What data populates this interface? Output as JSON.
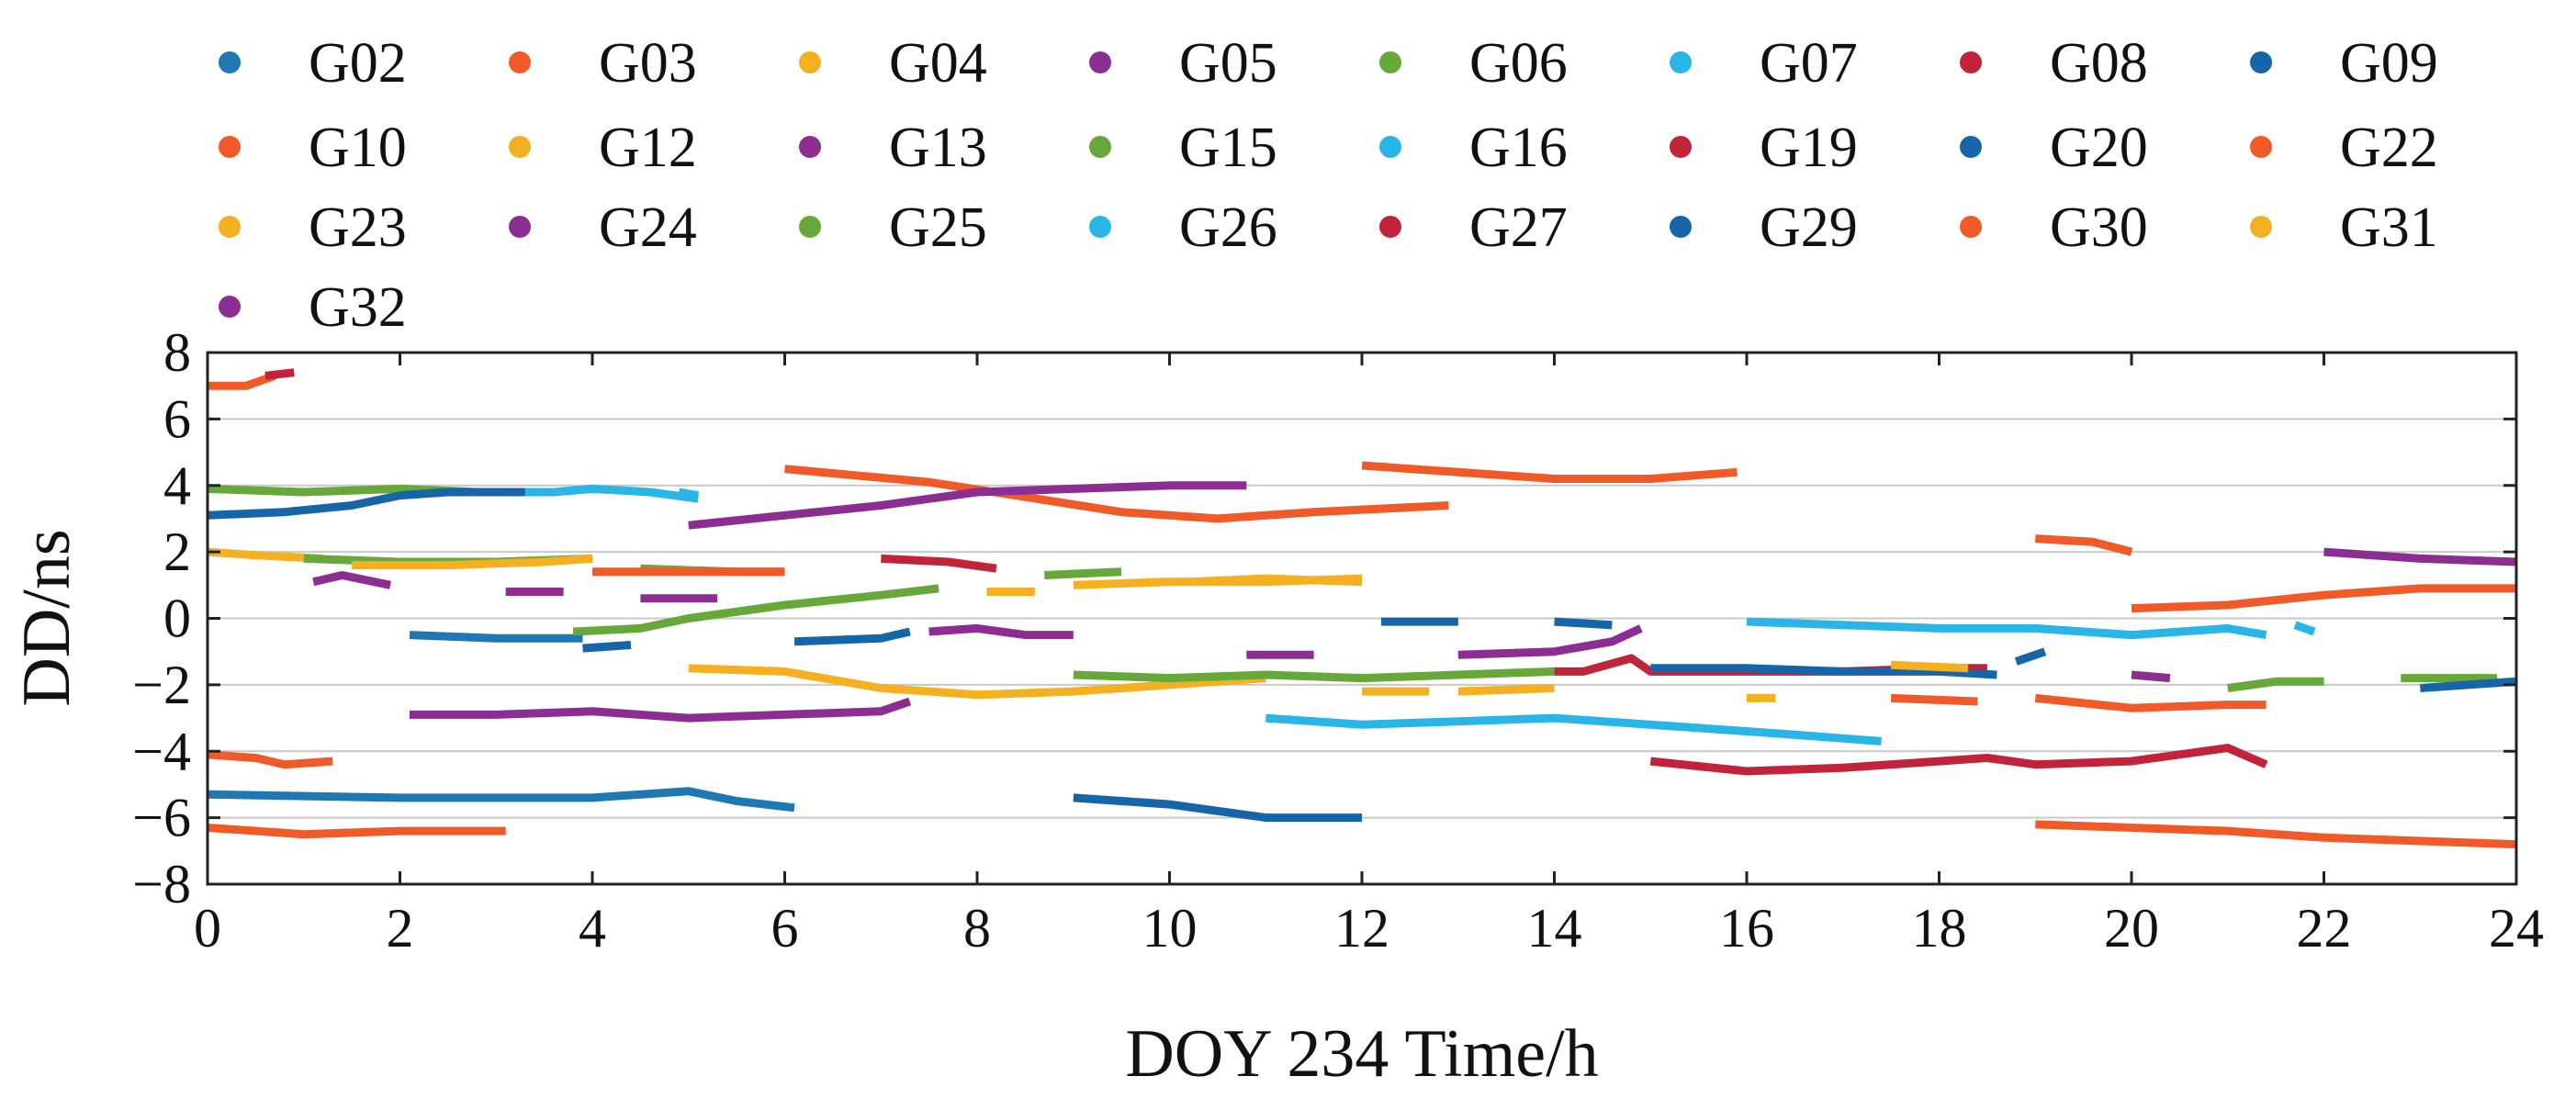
{
  "chart_data": {
    "type": "line",
    "title": "",
    "xlabel": "DOY 234 Time/h",
    "ylabel": "DD/ns",
    "xlim": [
      0,
      24
    ],
    "ylim": [
      -8,
      8
    ],
    "xticks": [
      0,
      2,
      4,
      6,
      8,
      10,
      12,
      14,
      16,
      18,
      20,
      22,
      24
    ],
    "yticks": [
      8,
      6,
      4,
      2,
      0,
      -2,
      -4,
      -6,
      -8
    ],
    "ytick_labels": [
      "8",
      "6",
      "4",
      "2",
      "0",
      "−2",
      "−4",
      "−6",
      "−8"
    ],
    "grid": "horizontal",
    "legend_position": "top",
    "colors": {
      "blue": "#1f77b4",
      "orange": "#f05a28",
      "yellow": "#f5b021",
      "purple": "#8c2d91",
      "green": "#66a83a",
      "cyan": "#29b6e6",
      "red": "#c0233a",
      "darkblue": "#1565a8"
    },
    "series": [
      {
        "name": "G02",
        "color": "#1f77b4",
        "segments": [
          [
            [
              0,
              -5.3
            ],
            [
              2,
              -5.4
            ],
            [
              3,
              -5.4
            ],
            [
              4,
              -5.4
            ],
            [
              5,
              -5.2
            ],
            [
              5.5,
              -5.5
            ],
            [
              6.1,
              -5.7
            ]
          ],
          [
            [
              2.1,
              -0.5
            ],
            [
              3,
              -0.6
            ],
            [
              3.9,
              -0.6
            ]
          ]
        ]
      },
      {
        "name": "G03",
        "color": "#f05a28",
        "segments": [
          [
            [
              0,
              7.0
            ],
            [
              0.4,
              7.0
            ],
            [
              0.7,
              7.3
            ]
          ],
          [
            [
              6,
              4.5
            ],
            [
              7.5,
              4.1
            ],
            [
              8.4,
              3.7
            ],
            [
              9.5,
              3.2
            ],
            [
              10.5,
              3.0
            ],
            [
              11.5,
              3.2
            ],
            [
              12.9,
              3.4
            ]
          ]
        ]
      },
      {
        "name": "G04",
        "color": "#f5b021",
        "segments": [
          [
            [
              0,
              2.0
            ],
            [
              0.5,
              1.9
            ],
            [
              1.2,
              1.8
            ]
          ],
          [
            [
              8.1,
              0.8
            ],
            [
              8.6,
              0.8
            ]
          ],
          [
            [
              9,
              1.0
            ],
            [
              10,
              1.1
            ],
            [
              11,
              1.1
            ],
            [
              12,
              1.2
            ]
          ]
        ]
      },
      {
        "name": "G05",
        "color": "#8c2d91",
        "segments": [
          [
            [
              1.1,
              1.1
            ],
            [
              1.4,
              1.3
            ],
            [
              1.9,
              1.0
            ]
          ],
          [
            [
              3.1,
              0.8
            ],
            [
              3.7,
              0.8
            ]
          ],
          [
            [
              4.5,
              0.6
            ],
            [
              5.3,
              0.6
            ]
          ]
        ]
      },
      {
        "name": "G06",
        "color": "#66a83a",
        "segments": [
          [
            [
              0,
              3.9
            ],
            [
              1,
              3.8
            ],
            [
              2,
              3.9
            ],
            [
              2.8,
              3.8
            ]
          ],
          [
            [
              3.8,
              -0.4
            ],
            [
              4.5,
              -0.3
            ],
            [
              5,
              0.0
            ],
            [
              6,
              0.4
            ],
            [
              7,
              0.7
            ],
            [
              7.6,
              0.9
            ]
          ]
        ]
      },
      {
        "name": "G07",
        "color": "#29b6e6",
        "segments": [
          [
            [
              3,
              3.8
            ],
            [
              3.6,
              3.8
            ],
            [
              4,
              3.9
            ],
            [
              4.6,
              3.8
            ],
            [
              5.1,
              3.6
            ]
          ],
          [
            [
              11,
              -3.0
            ],
            [
              12,
              -3.2
            ],
            [
              13,
              -3.1
            ],
            [
              14,
              -3.0
            ],
            [
              15.5,
              -3.3
            ],
            [
              16.5,
              -3.5
            ],
            [
              17.4,
              -3.7
            ]
          ]
        ]
      },
      {
        "name": "G08",
        "color": "#c0233a",
        "segments": [
          [
            [
              7,
              1.8
            ],
            [
              7.7,
              1.7
            ],
            [
              8.2,
              1.5
            ]
          ],
          [
            [
              14,
              -1.6
            ],
            [
              14.3,
              -1.6
            ],
            [
              14.8,
              -1.2
            ],
            [
              15,
              -1.6
            ],
            [
              16,
              -1.6
            ],
            [
              17,
              -1.6
            ],
            [
              18,
              -1.5
            ],
            [
              18.5,
              -1.5
            ]
          ]
        ]
      },
      {
        "name": "G09",
        "color": "#1565a8",
        "segments": [
          [
            [
              0,
              3.1
            ],
            [
              0.8,
              3.2
            ],
            [
              1.5,
              3.4
            ],
            [
              2,
              3.7
            ],
            [
              2.5,
              3.8
            ],
            [
              3.3,
              3.8
            ]
          ],
          [
            [
              15,
              -1.5
            ],
            [
              16,
              -1.5
            ],
            [
              17,
              -1.6
            ],
            [
              18,
              -1.6
            ],
            [
              18.6,
              -1.7
            ]
          ],
          [
            [
              18.8,
              -1.3
            ],
            [
              19.1,
              -1.0
            ]
          ]
        ]
      },
      {
        "name": "G10",
        "color": "#f05a28",
        "segments": [
          [
            [
              0,
              -4.1
            ],
            [
              0.5,
              -4.2
            ],
            [
              0.8,
              -4.4
            ],
            [
              1.3,
              -4.3
            ]
          ],
          [
            [
              12,
              4.6
            ],
            [
              13,
              4.4
            ],
            [
              14,
              4.2
            ],
            [
              15,
              4.2
            ],
            [
              15.9,
              4.4
            ]
          ]
        ]
      },
      {
        "name": "G12",
        "color": "#f5b021",
        "segments": [
          [
            [
              5,
              -1.5
            ],
            [
              6,
              -1.6
            ],
            [
              7,
              -2.1
            ],
            [
              8,
              -2.3
            ],
            [
              9,
              -2.2
            ],
            [
              10,
              -2.0
            ],
            [
              11,
              -1.8
            ]
          ],
          [
            [
              12,
              -2.2
            ],
            [
              12.7,
              -2.2
            ]
          ],
          [
            [
              13,
              -2.2
            ],
            [
              14,
              -2.1
            ]
          ],
          [
            [
              16,
              -2.4
            ],
            [
              16.3,
              -2.4
            ]
          ]
        ]
      },
      {
        "name": "G13",
        "color": "#8c2d91",
        "segments": [
          [
            [
              2.1,
              -2.9
            ],
            [
              3,
              -2.9
            ],
            [
              4,
              -2.8
            ],
            [
              5,
              -3.0
            ],
            [
              6,
              -2.9
            ],
            [
              7,
              -2.8
            ],
            [
              7.3,
              -2.5
            ]
          ],
          [
            [
              5,
              2.8
            ],
            [
              6,
              3.1
            ],
            [
              7,
              3.4
            ],
            [
              8,
              3.8
            ],
            [
              9,
              3.9
            ],
            [
              10,
              4.0
            ],
            [
              10.8,
              4.0
            ]
          ]
        ]
      },
      {
        "name": "G15",
        "color": "#66a83a",
        "segments": [
          [
            [
              1,
              1.8
            ],
            [
              2,
              1.7
            ],
            [
              3,
              1.7
            ],
            [
              4,
              1.8
            ]
          ],
          [
            [
              8.7,
              1.3
            ],
            [
              9.5,
              1.4
            ]
          ],
          [
            [
              9,
              -1.7
            ],
            [
              10,
              -1.8
            ],
            [
              11,
              -1.7
            ],
            [
              12,
              -1.8
            ],
            [
              13,
              -1.7
            ],
            [
              14,
              -1.6
            ]
          ]
        ]
      },
      {
        "name": "G16",
        "color": "#29b6e6",
        "segments": [
          [
            [
              16,
              -0.1
            ],
            [
              17,
              -0.2
            ],
            [
              18,
              -0.3
            ],
            [
              19,
              -0.3
            ],
            [
              20,
              -0.5
            ],
            [
              21,
              -0.3
            ],
            [
              21.4,
              -0.5
            ]
          ],
          [
            [
              21.7,
              -0.2
            ],
            [
              21.9,
              -0.4
            ]
          ]
        ]
      },
      {
        "name": "G19",
        "color": "#c0233a",
        "segments": [
          [
            [
              15,
              -4.3
            ],
            [
              16,
              -4.6
            ],
            [
              17,
              -4.5
            ],
            [
              18,
              -4.3
            ],
            [
              18.5,
              -4.2
            ],
            [
              19,
              -4.4
            ],
            [
              20,
              -4.3
            ],
            [
              21,
              -3.9
            ],
            [
              21.4,
              -4.4
            ]
          ]
        ]
      },
      {
        "name": "G20",
        "color": "#1565a8",
        "segments": [
          [
            [
              6.1,
              -0.7
            ],
            [
              7,
              -0.6
            ],
            [
              7.3,
              -0.4
            ]
          ],
          [
            [
              9,
              -5.4
            ],
            [
              10,
              -5.6
            ],
            [
              11,
              -6.0
            ],
            [
              12,
              -6.0
            ]
          ],
          [
            [
              12.2,
              -0.1
            ],
            [
              13,
              -0.1
            ]
          ],
          [
            [
              14,
              -0.1
            ],
            [
              14.6,
              -0.2
            ]
          ]
        ]
      },
      {
        "name": "G22",
        "color": "#f05a28",
        "segments": [
          [
            [
              0,
              -6.3
            ],
            [
              1,
              -6.5
            ],
            [
              2,
              -6.4
            ],
            [
              3.1,
              -6.4
            ]
          ],
          [
            [
              17.5,
              -2.4
            ],
            [
              18.4,
              -2.5
            ]
          ],
          [
            [
              19,
              -2.4
            ],
            [
              20,
              -2.7
            ],
            [
              21,
              -2.6
            ],
            [
              21.4,
              -2.6
            ]
          ]
        ]
      },
      {
        "name": "G23",
        "color": "#f5b021",
        "segments": [
          [
            [
              1.5,
              1.6
            ],
            [
              2.5,
              1.6
            ],
            [
              3.5,
              1.7
            ],
            [
              4,
              1.8
            ]
          ],
          [
            [
              17.5,
              -1.4
            ],
            [
              18.3,
              -1.5
            ]
          ]
        ]
      },
      {
        "name": "G24",
        "color": "#8c2d91",
        "segments": [
          [
            [
              7.5,
              -0.4
            ],
            [
              8,
              -0.3
            ],
            [
              8.5,
              -0.5
            ],
            [
              9,
              -0.5
            ]
          ],
          [
            [
              10.8,
              -1.1
            ],
            [
              11.5,
              -1.1
            ]
          ],
          [
            [
              13,
              -1.1
            ],
            [
              14,
              -1.0
            ],
            [
              14.6,
              -0.7
            ],
            [
              14.9,
              -0.3
            ]
          ],
          [
            [
              20,
              -1.7
            ],
            [
              20.4,
              -1.8
            ]
          ]
        ]
      },
      {
        "name": "G25",
        "color": "#66a83a",
        "segments": [
          [
            [
              4.5,
              1.5
            ],
            [
              5.5,
              1.4
            ],
            [
              6,
              1.4
            ]
          ],
          [
            [
              21,
              -2.1
            ],
            [
              21.5,
              -1.9
            ],
            [
              22,
              -1.9
            ]
          ],
          [
            [
              22.8,
              -1.8
            ],
            [
              23.8,
              -1.8
            ]
          ]
        ]
      },
      {
        "name": "G26",
        "color": "#29b6e6",
        "segments": [
          [
            [
              4.9,
              3.8
            ],
            [
              5.1,
              3.7
            ]
          ]
        ]
      },
      {
        "name": "G27",
        "color": "#c0233a",
        "segments": [
          [
            [
              0.6,
              7.3
            ],
            [
              0.9,
              7.4
            ]
          ]
        ]
      },
      {
        "name": "G29",
        "color": "#1565a8",
        "segments": [
          [
            [
              3.9,
              -0.9
            ],
            [
              4.4,
              -0.8
            ]
          ],
          [
            [
              23,
              -2.1
            ],
            [
              23.5,
              -2.0
            ],
            [
              24,
              -1.9
            ]
          ]
        ]
      },
      {
        "name": "G30",
        "color": "#f05a28",
        "segments": [
          [
            [
              4,
              1.4
            ],
            [
              5,
              1.4
            ],
            [
              6,
              1.4
            ]
          ],
          [
            [
              19,
              2.4
            ],
            [
              19.6,
              2.3
            ],
            [
              20,
              2.0
            ]
          ],
          [
            [
              19,
              -6.2
            ],
            [
              20,
              -6.3
            ],
            [
              21,
              -6.4
            ],
            [
              22,
              -6.6
            ],
            [
              23,
              -6.7
            ],
            [
              24,
              -6.8
            ]
          ],
          [
            [
              20,
              0.3
            ],
            [
              21,
              0.4
            ],
            [
              22,
              0.7
            ],
            [
              23,
              0.9
            ],
            [
              24,
              0.9
            ]
          ]
        ]
      },
      {
        "name": "G31",
        "color": "#f5b021",
        "segments": [
          [
            [
              10.2,
              1.1
            ],
            [
              11,
              1.2
            ],
            [
              12,
              1.1
            ]
          ]
        ]
      },
      {
        "name": "G32",
        "color": "#8c2d91",
        "segments": [
          [
            [
              22,
              2.0
            ],
            [
              23,
              1.8
            ],
            [
              24,
              1.7
            ]
          ]
        ]
      }
    ]
  }
}
